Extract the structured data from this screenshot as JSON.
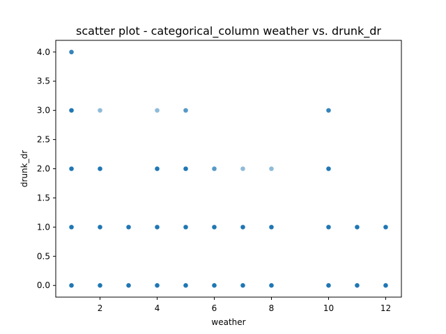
{
  "chart_data": {
    "type": "scatter",
    "title": "scatter plot - categorical_column weather vs. drunk_dr",
    "xlabel": "weather",
    "ylabel": "drunk_dr",
    "xlim": [
      0.45,
      12.55
    ],
    "ylim": [
      -0.2,
      4.2
    ],
    "xticks": [
      2,
      4,
      6,
      8,
      10,
      12
    ],
    "yticks": [
      0.0,
      0.5,
      1.0,
      1.5,
      2.0,
      2.5,
      3.0,
      3.5,
      4.0
    ],
    "xtick_labels": [
      "2",
      "4",
      "6",
      "8",
      "10",
      "12"
    ],
    "ytick_labels": [
      "0.0",
      "0.5",
      "1.0",
      "1.5",
      "2.0",
      "2.5",
      "3.0",
      "3.5",
      "4.0"
    ],
    "grid": false,
    "legend": "none",
    "series": [
      {
        "color": "#1f77b4",
        "points": [
          {
            "x": 1,
            "y": 0,
            "w": 1.0
          },
          {
            "x": 1,
            "y": 1,
            "w": 1.0
          },
          {
            "x": 1,
            "y": 2,
            "w": 1.0
          },
          {
            "x": 1,
            "y": 3,
            "w": 1.0
          },
          {
            "x": 1,
            "y": 4,
            "w": 0.9
          },
          {
            "x": 2,
            "y": 0,
            "w": 1.0
          },
          {
            "x": 2,
            "y": 1,
            "w": 1.0
          },
          {
            "x": 2,
            "y": 2,
            "w": 1.0
          },
          {
            "x": 2,
            "y": 3,
            "w": 0.5
          },
          {
            "x": 3,
            "y": 0,
            "w": 1.0
          },
          {
            "x": 3,
            "y": 1,
            "w": 1.0
          },
          {
            "x": 4,
            "y": 0,
            "w": 1.0
          },
          {
            "x": 4,
            "y": 1,
            "w": 1.0
          },
          {
            "x": 4,
            "y": 2,
            "w": 1.0
          },
          {
            "x": 4,
            "y": 3,
            "w": 0.5
          },
          {
            "x": 5,
            "y": 0,
            "w": 1.0
          },
          {
            "x": 5,
            "y": 1,
            "w": 1.0
          },
          {
            "x": 5,
            "y": 2,
            "w": 1.0
          },
          {
            "x": 5,
            "y": 3,
            "w": 0.75
          },
          {
            "x": 6,
            "y": 0,
            "w": 1.0
          },
          {
            "x": 6,
            "y": 1,
            "w": 1.0
          },
          {
            "x": 6,
            "y": 2,
            "w": 0.75
          },
          {
            "x": 7,
            "y": 0,
            "w": 1.0
          },
          {
            "x": 7,
            "y": 1,
            "w": 1.0
          },
          {
            "x": 7,
            "y": 2,
            "w": 0.5
          },
          {
            "x": 8,
            "y": 0,
            "w": 1.0
          },
          {
            "x": 8,
            "y": 1,
            "w": 1.0
          },
          {
            "x": 8,
            "y": 2,
            "w": 0.5
          },
          {
            "x": 10,
            "y": 0,
            "w": 1.0
          },
          {
            "x": 10,
            "y": 1,
            "w": 1.0
          },
          {
            "x": 10,
            "y": 2,
            "w": 1.0
          },
          {
            "x": 10,
            "y": 3,
            "w": 0.9
          },
          {
            "x": 11,
            "y": 0,
            "w": 1.0
          },
          {
            "x": 11,
            "y": 1,
            "w": 1.0
          },
          {
            "x": 12,
            "y": 0,
            "w": 1.0
          },
          {
            "x": 12,
            "y": 1,
            "w": 1.0
          }
        ]
      }
    ]
  }
}
